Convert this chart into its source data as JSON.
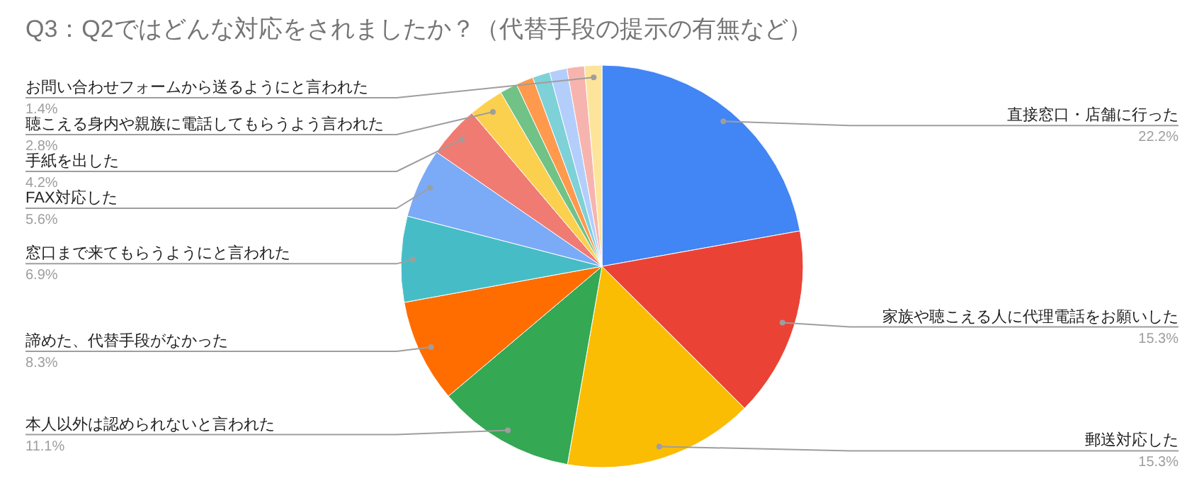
{
  "chart_data": {
    "type": "pie",
    "title": "Q3：Q2ではどんな対応をされましたか？（代替手段の提示の有無など）",
    "categories": [
      "直接窓口・店舗に行った",
      "家族や聴こえる人に代理電話をお願いした",
      "郵送対応した",
      "本人以外は認められないと言われた",
      "諦めた、代替手段がなかった",
      "窓口まで来てもらうようにと言われた",
      "FAX対応した",
      "手紙を出した",
      "聴こえる身内や親族に電話してもらうよう言われた",
      null,
      null,
      null,
      null,
      null,
      "お問い合わせフォームから送るようにと言われた"
    ],
    "values": [
      22.2,
      15.3,
      15.3,
      11.1,
      8.3,
      6.9,
      5.6,
      4.2,
      2.8,
      1.4,
      1.4,
      1.4,
      1.4,
      1.4,
      1.4
    ],
    "value_labels": [
      "22.2%",
      "15.3%",
      "15.3%",
      "11.1%",
      "8.3%",
      "6.9%",
      "5.6%",
      "4.2%",
      "2.8%",
      null,
      null,
      null,
      null,
      null,
      "1.4%"
    ],
    "colors": [
      "#4285f4",
      "#ea4335",
      "#fbbc04",
      "#34a853",
      "#ff6d01",
      "#46bdc6",
      "#7baaf7",
      "#f07b72",
      "#fcd04f",
      "#71c287",
      "#ff994d",
      "#7ed1d7",
      "#b3cefb",
      "#f7b4ae",
      "#fde49b"
    ],
    "legend": false
  }
}
